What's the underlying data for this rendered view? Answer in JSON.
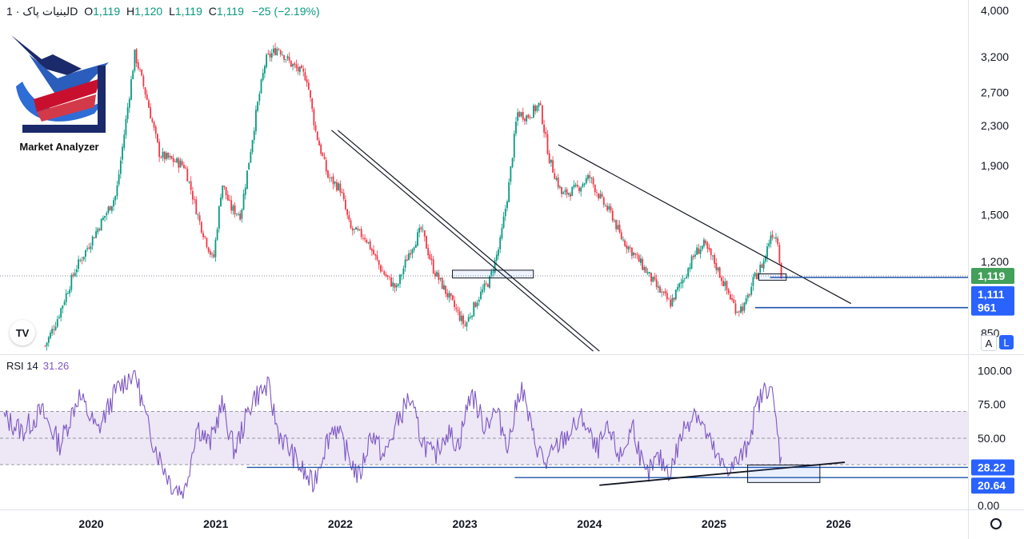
{
  "header": {
    "symbol": "لبنیات پاک",
    "interval": "1D",
    "open_label": "O",
    "open": "1,119",
    "high_label": "H",
    "high": "1,120",
    "low_label": "L",
    "low": "1,119",
    "close_label": "C",
    "close": "1,119",
    "change": "−25 (−2.19%)"
  },
  "logo": {
    "text": "Market Analyzer"
  },
  "rsi_header": {
    "name": "RSI 14",
    "value": "31.26"
  },
  "price_tags": [
    {
      "label": "1,119",
      "color": "#42a05b"
    },
    {
      "label": "1,111",
      "color": "#2962ff"
    },
    {
      "label": "961",
      "color": "#2962ff"
    }
  ],
  "rsi_tags": [
    {
      "label": "28.22",
      "color": "#2962ff"
    },
    {
      "label": "20.64",
      "color": "#2962ff"
    }
  ],
  "buttons": {
    "auto": "A",
    "log": "L"
  },
  "colors": {
    "up": "#089981",
    "down": "#f23645",
    "rsi": "#7e57c2",
    "level": "#1e53a8",
    "band": "#ede7f6"
  },
  "chart_data": [
    {
      "type": "candlestick",
      "title": "لبنیات پاک · 1D",
      "y_scale": "log",
      "y_ticks": [
        "4,000",
        "3,200",
        "2,700",
        "2,300",
        "1,900",
        "1,500",
        "1,200",
        "850"
      ],
      "y_tick_values": [
        4000,
        3200,
        2700,
        2300,
        1900,
        1500,
        1200,
        850
      ],
      "x_ticks": [
        "2020",
        "2021",
        "2022",
        "2023",
        "2024",
        "2025",
        "2026"
      ],
      "x_tick_years": [
        2020,
        2021,
        2022,
        2023,
        2024,
        2025,
        2026
      ],
      "last_price": 1119,
      "horizontal_levels": [
        1111,
        961
      ],
      "price_path": [
        [
          2019.63,
          800
        ],
        [
          2019.72,
          900
        ],
        [
          2019.87,
          1150
        ],
        [
          2020.05,
          1400
        ],
        [
          2020.2,
          1650
        ],
        [
          2020.35,
          3250
        ],
        [
          2020.45,
          2600
        ],
        [
          2020.55,
          2000
        ],
        [
          2020.75,
          1900
        ],
        [
          2020.87,
          1450
        ],
        [
          2020.98,
          1200
        ],
        [
          2021.05,
          1750
        ],
        [
          2021.12,
          1550
        ],
        [
          2021.2,
          1500
        ],
        [
          2021.33,
          2500
        ],
        [
          2021.4,
          3150
        ],
        [
          2021.5,
          3350
        ],
        [
          2021.6,
          3100
        ],
        [
          2021.73,
          2900
        ],
        [
          2021.8,
          2250
        ],
        [
          2021.9,
          1800
        ],
        [
          2022.0,
          1700
        ],
        [
          2022.08,
          1400
        ],
        [
          2022.2,
          1350
        ],
        [
          2022.33,
          1150
        ],
        [
          2022.45,
          1050
        ],
        [
          2022.55,
          1250
        ],
        [
          2022.65,
          1400
        ],
        [
          2022.75,
          1150
        ],
        [
          2022.9,
          980
        ],
        [
          2023.0,
          880
        ],
        [
          2023.1,
          1000
        ],
        [
          2023.2,
          1100
        ],
        [
          2023.28,
          1300
        ],
        [
          2023.35,
          1700
        ],
        [
          2023.42,
          2450
        ],
        [
          2023.5,
          2400
        ],
        [
          2023.6,
          2550
        ],
        [
          2023.68,
          1950
        ],
        [
          2023.78,
          1650
        ],
        [
          2023.9,
          1700
        ],
        [
          2024.0,
          1800
        ],
        [
          2024.1,
          1600
        ],
        [
          2024.18,
          1500
        ],
        [
          2024.25,
          1350
        ],
        [
          2024.35,
          1250
        ],
        [
          2024.45,
          1150
        ],
        [
          2024.55,
          1050
        ],
        [
          2024.65,
          980
        ],
        [
          2024.75,
          1100
        ],
        [
          2024.85,
          1250
        ],
        [
          2024.92,
          1300
        ],
        [
          2025.0,
          1200
        ],
        [
          2025.1,
          1050
        ],
        [
          2025.18,
          950
        ],
        [
          2025.25,
          970
        ],
        [
          2025.32,
          1100
        ],
        [
          2025.4,
          1200
        ],
        [
          2025.46,
          1380
        ],
        [
          2025.51,
          1340
        ],
        [
          2025.54,
          1119
        ]
      ],
      "trendlines": [
        {
          "from": [
            2021.93,
            2250
          ],
          "to": [
            2024.03,
            780
          ]
        },
        {
          "from": [
            2021.98,
            2250
          ],
          "to": [
            2024.08,
            780
          ]
        },
        {
          "from": [
            2023.75,
            2100
          ],
          "to": [
            2026.1,
            980
          ]
        }
      ],
      "boxes": [
        {
          "x": [
            2022.9,
            2023.55
          ],
          "y": [
            1125,
            1150
          ]
        },
        {
          "x": [
            2025.36,
            2025.58
          ],
          "y": [
            1113,
            1130
          ]
        }
      ]
    },
    {
      "type": "line",
      "title": "RSI 14",
      "y_ticks": [
        "100.00",
        "75.00",
        "50.00",
        "0.00"
      ],
      "y_tick_values": [
        100,
        75,
        50,
        0
      ],
      "band": [
        30,
        70
      ],
      "levels": [
        28.22,
        20.64
      ],
      "last_value": 31.26,
      "rsi_path": [
        [
          2019.3,
          65
        ],
        [
          2019.45,
          55
        ],
        [
          2019.6,
          70
        ],
        [
          2019.75,
          45
        ],
        [
          2019.9,
          82
        ],
        [
          2020.05,
          55
        ],
        [
          2020.2,
          85
        ],
        [
          2020.35,
          100
        ],
        [
          2020.45,
          60
        ],
        [
          2020.55,
          35
        ],
        [
          2020.65,
          15
        ],
        [
          2020.75,
          10
        ],
        [
          2020.85,
          60
        ],
        [
          2020.95,
          45
        ],
        [
          2021.05,
          75
        ],
        [
          2021.15,
          40
        ],
        [
          2021.3,
          80
        ],
        [
          2021.42,
          88
        ],
        [
          2021.5,
          55
        ],
        [
          2021.6,
          40
        ],
        [
          2021.7,
          25
        ],
        [
          2021.78,
          15
        ],
        [
          2021.88,
          45
        ],
        [
          2021.95,
          60
        ],
        [
          2022.05,
          40
        ],
        [
          2022.15,
          20
        ],
        [
          2022.25,
          55
        ],
        [
          2022.35,
          35
        ],
        [
          2022.45,
          60
        ],
        [
          2022.55,
          80
        ],
        [
          2022.65,
          50
        ],
        [
          2022.75,
          35
        ],
        [
          2022.85,
          55
        ],
        [
          2022.95,
          45
        ],
        [
          2023.05,
          85
        ],
        [
          2023.15,
          60
        ],
        [
          2023.25,
          70
        ],
        [
          2023.35,
          45
        ],
        [
          2023.45,
          90
        ],
        [
          2023.55,
          50
        ],
        [
          2023.65,
          30
        ],
        [
          2023.75,
          45
        ],
        [
          2023.85,
          55
        ],
        [
          2023.95,
          65
        ],
        [
          2024.05,
          40
        ],
        [
          2024.15,
          55
        ],
        [
          2024.25,
          35
        ],
        [
          2024.35,
          60
        ],
        [
          2024.45,
          20
        ],
        [
          2024.55,
          35
        ],
        [
          2024.65,
          25
        ],
        [
          2024.75,
          55
        ],
        [
          2024.85,
          72
        ],
        [
          2024.95,
          50
        ],
        [
          2025.05,
          30
        ],
        [
          2025.15,
          28
        ],
        [
          2025.25,
          40
        ],
        [
          2025.35,
          75
        ],
        [
          2025.45,
          92
        ],
        [
          2025.5,
          60
        ],
        [
          2025.54,
          31.26
        ]
      ],
      "trendline": {
        "from": [
          2024.08,
          15
        ],
        "to": [
          2026.05,
          32
        ]
      },
      "box": {
        "x": [
          2025.27,
          2025.85
        ],
        "y": [
          17,
          30
        ]
      }
    }
  ]
}
